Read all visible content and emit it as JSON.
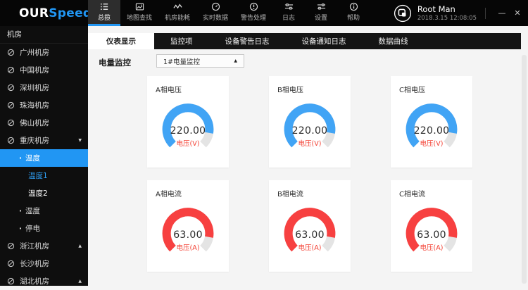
{
  "colors": {
    "accent_blue": "#2196f3",
    "gauge_blue": "#41a4f5",
    "gauge_red": "#f74040",
    "gauge_track": "#e4e4e4",
    "unit_red": "#f44336"
  },
  "topbar": {
    "logo_part1": "OUR",
    "logo_part2": "Speed",
    "nav": [
      {
        "id": "overview",
        "label": "总揽",
        "icon": "list-icon",
        "active": true
      },
      {
        "id": "map-search",
        "label": "地图查找",
        "icon": "map-icon",
        "active": false
      },
      {
        "id": "room-energy",
        "label": "机房能耗",
        "icon": "wave-icon",
        "active": false
      },
      {
        "id": "realtime-data",
        "label": "实时数据",
        "icon": "gauge-icon",
        "active": false
      },
      {
        "id": "alert-handling",
        "label": "警告处理",
        "icon": "alert-icon",
        "active": false
      },
      {
        "id": "logs",
        "label": "日志",
        "icon": "sliders-icon",
        "active": false
      },
      {
        "id": "settings",
        "label": "设置",
        "icon": "settings-icon",
        "active": false
      },
      {
        "id": "help",
        "label": "帮助",
        "icon": "info-icon",
        "active": false
      }
    ],
    "user": {
      "name": "Root Man",
      "datetime": "2018.3.15 12:08:05"
    },
    "window_controls": {
      "minimize": "—",
      "close": "✕"
    }
  },
  "sidebar": {
    "header": "机房",
    "items": [
      {
        "id": "guangzhou",
        "label": "广州机房",
        "level": 0,
        "icon": "room",
        "caret": null,
        "highlight": false,
        "active_text": false
      },
      {
        "id": "zhongguo",
        "label": "中国机房",
        "level": 0,
        "icon": "room",
        "caret": null,
        "highlight": false,
        "active_text": false
      },
      {
        "id": "shenzhen",
        "label": "深圳机房",
        "level": 0,
        "icon": "room",
        "caret": null,
        "highlight": false,
        "active_text": false
      },
      {
        "id": "zhuhai",
        "label": "珠海机房",
        "level": 0,
        "icon": "room",
        "caret": null,
        "highlight": false,
        "active_text": false
      },
      {
        "id": "foshan",
        "label": "佛山机房",
        "level": 0,
        "icon": "room",
        "caret": null,
        "highlight": false,
        "active_text": false
      },
      {
        "id": "chongqing",
        "label": "重庆机房",
        "level": 0,
        "icon": "room",
        "caret": "down",
        "highlight": false,
        "active_text": false
      },
      {
        "id": "wendu",
        "label": "温度",
        "level": 1,
        "icon": "dot",
        "caret": null,
        "highlight": true,
        "active_text": false
      },
      {
        "id": "wendu1",
        "label": "温度1",
        "level": 2,
        "icon": null,
        "caret": null,
        "highlight": false,
        "active_text": true
      },
      {
        "id": "wendu2",
        "label": "温度2",
        "level": 2,
        "icon": null,
        "caret": null,
        "highlight": false,
        "active_text": false
      },
      {
        "id": "shidu",
        "label": "湿度",
        "level": 1,
        "icon": "dot",
        "caret": null,
        "highlight": false,
        "active_text": false
      },
      {
        "id": "tingdian",
        "label": "停电",
        "level": 1,
        "icon": "dot",
        "caret": null,
        "highlight": false,
        "active_text": false
      },
      {
        "id": "zhejiang",
        "label": "浙江机房",
        "level": 0,
        "icon": "room",
        "caret": "up",
        "highlight": false,
        "active_text": false
      },
      {
        "id": "changsha",
        "label": "长沙机房",
        "level": 0,
        "icon": "room",
        "caret": null,
        "highlight": false,
        "active_text": false
      },
      {
        "id": "hubei",
        "label": "湖北机房",
        "level": 0,
        "icon": "room",
        "caret": "up",
        "highlight": false,
        "active_text": false
      }
    ]
  },
  "tabs": [
    {
      "id": "dashboard-display",
      "label": "仪表显示",
      "active": true
    },
    {
      "id": "monitor-items",
      "label": "监控项",
      "active": false
    },
    {
      "id": "device-alarm-log",
      "label": "设备警告日志",
      "active": false
    },
    {
      "id": "device-notice-log",
      "label": "设备通知日志",
      "active": false
    },
    {
      "id": "data-curve",
      "label": "数据曲线",
      "active": false
    }
  ],
  "filter": {
    "label": "电量监控",
    "selected_option": "1#电量监控",
    "caret": "▲"
  },
  "chart_data": {
    "type": "gauge",
    "arc": {
      "start_deg": 225,
      "sweep_deg": 270
    },
    "gauges": [
      {
        "id": "a-voltage",
        "title": "A相电压",
        "value": "220.00",
        "unit": "电压(V)",
        "color": "#41a4f5",
        "fraction": 0.87
      },
      {
        "id": "b-voltage",
        "title": "B相电压",
        "value": "220.00",
        "unit": "电压(V)",
        "color": "#41a4f5",
        "fraction": 0.87
      },
      {
        "id": "c-voltage",
        "title": "C相电压",
        "value": "220.00",
        "unit": "电压(V)",
        "color": "#41a4f5",
        "fraction": 0.87
      },
      {
        "id": "a-current",
        "title": "A相电流",
        "value": "63.00",
        "unit": "电压(A)",
        "color": "#f74040",
        "fraction": 0.87
      },
      {
        "id": "b-current",
        "title": "B相电流",
        "value": "63.00",
        "unit": "电压(A)",
        "color": "#f74040",
        "fraction": 0.87
      },
      {
        "id": "c-current",
        "title": "C相电流",
        "value": "63.00",
        "unit": "电压(A)",
        "color": "#f74040",
        "fraction": 0.87
      }
    ]
  }
}
